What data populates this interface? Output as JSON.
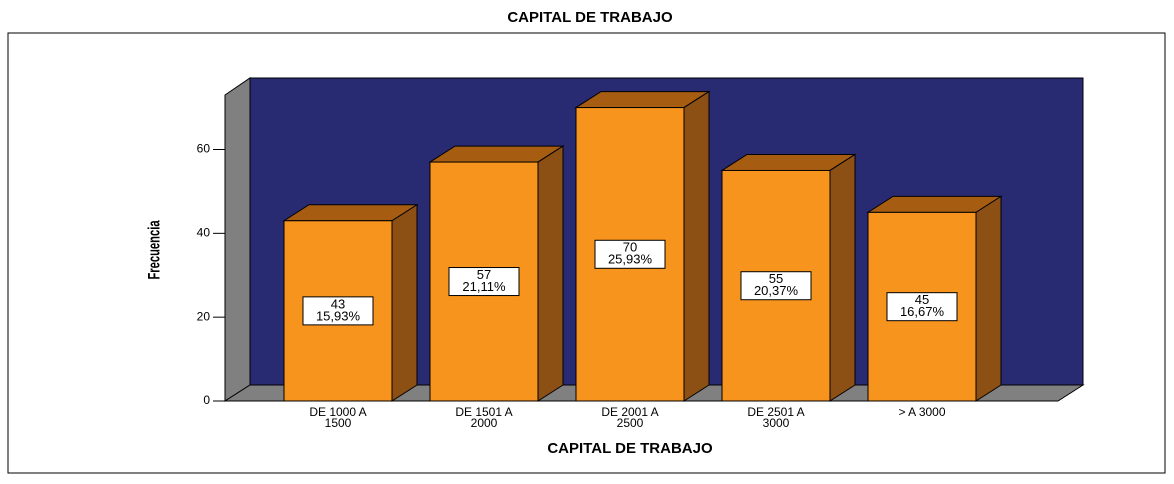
{
  "chart_data": {
    "type": "bar3d",
    "title": "CAPITAL DE TRABAJO",
    "x_label": "CAPITAL DE TRABAJO",
    "y_label": "Frecuencia",
    "categories": [
      [
        "DE 1000 A",
        "1500"
      ],
      [
        "DE 1501 A",
        "2000"
      ],
      [
        "DE 2001 A",
        "2500"
      ],
      [
        "DE 2501 A",
        "3000"
      ],
      [
        "> A 3000"
      ]
    ],
    "values": [
      43,
      57,
      70,
      55,
      45
    ],
    "percent_labels": [
      "15,93%",
      "21,11%",
      "25,93%",
      "20,37%",
      "16,67%"
    ],
    "color": "#f7941d",
    "wall_color": "#282a72",
    "ylim": [
      0,
      73
    ],
    "yticks": [
      0,
      20,
      40,
      60
    ]
  }
}
